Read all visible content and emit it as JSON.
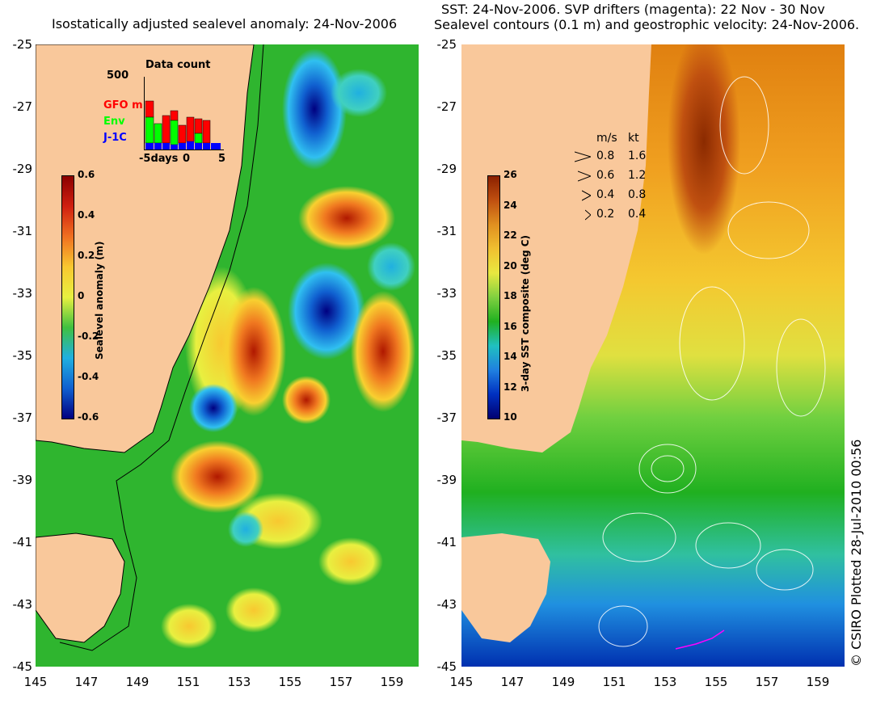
{
  "left": {
    "title": "Isostatically adjusted sealevel anomaly: 24-Nov-2006",
    "y_ticks": [
      "-25",
      "-27",
      "-29",
      "-31",
      "-33",
      "-35",
      "-37",
      "-39",
      "-41",
      "-43",
      "-45"
    ],
    "x_ticks": [
      "145",
      "147",
      "149",
      "151",
      "153",
      "155",
      "157",
      "159"
    ],
    "colorbar": {
      "label": "Sealevel anomaly (m)",
      "ticks": [
        "0.6",
        "0.4",
        "0.2",
        "0",
        "-0.2",
        "-0.4",
        "-0.6"
      ],
      "colors": [
        "#8b0000",
        "#d02010",
        "#f07020",
        "#f8c830",
        "#e8f040",
        "#40c040",
        "#20b0e0",
        "#1060d0",
        "#000080"
      ]
    },
    "data_count": {
      "title": "Data count",
      "ymax": "500",
      "x_labels": [
        "-5days",
        "0",
        "5"
      ],
      "series": [
        {
          "name": "GFO m",
          "color": "#ff0000"
        },
        {
          "name": "Env",
          "color": "#00ff00"
        },
        {
          "name": "J-1C",
          "color": "#0000ff"
        }
      ]
    }
  },
  "right": {
    "title_line1": "SST: 24-Nov-2006. SVP drifters (magenta): 22 Nov - 30 Nov",
    "title_line2": "Sealevel contours (0.1 m) and geostrophic velocity: 24-Nov-2006.",
    "y_ticks": [
      "-25",
      "-27",
      "-29",
      "-31",
      "-33",
      "-35",
      "-37",
      "-39",
      "-41",
      "-43",
      "-45"
    ],
    "x_ticks": [
      "145",
      "147",
      "149",
      "151",
      "153",
      "155",
      "157",
      "159"
    ],
    "colorbar": {
      "label": "3-day SST composite (deg C)",
      "ticks": [
        "26",
        "24",
        "22",
        "20",
        "18",
        "16",
        "14",
        "12",
        "10"
      ],
      "colors": [
        "#8b2000",
        "#c05010",
        "#e09020",
        "#f0c030",
        "#e8e840",
        "#80d040",
        "#20b020",
        "#20c0c0",
        "#2080e0",
        "#0030c0",
        "#000070"
      ]
    },
    "velocity_legend": {
      "header_ms": "m/s",
      "header_kt": "kt",
      "rows": [
        {
          "ms": "0.8",
          "kt": "1.6"
        },
        {
          "ms": "0.6",
          "kt": "1.2"
        },
        {
          "ms": "0.4",
          "kt": "0.8"
        },
        {
          "ms": "0.2",
          "kt": "0.4"
        }
      ]
    },
    "credit": "© CSIRO Plotted 28-Jul-2010 00:56"
  },
  "colors": {
    "land": "#f9c89b",
    "coast": "#000000"
  }
}
